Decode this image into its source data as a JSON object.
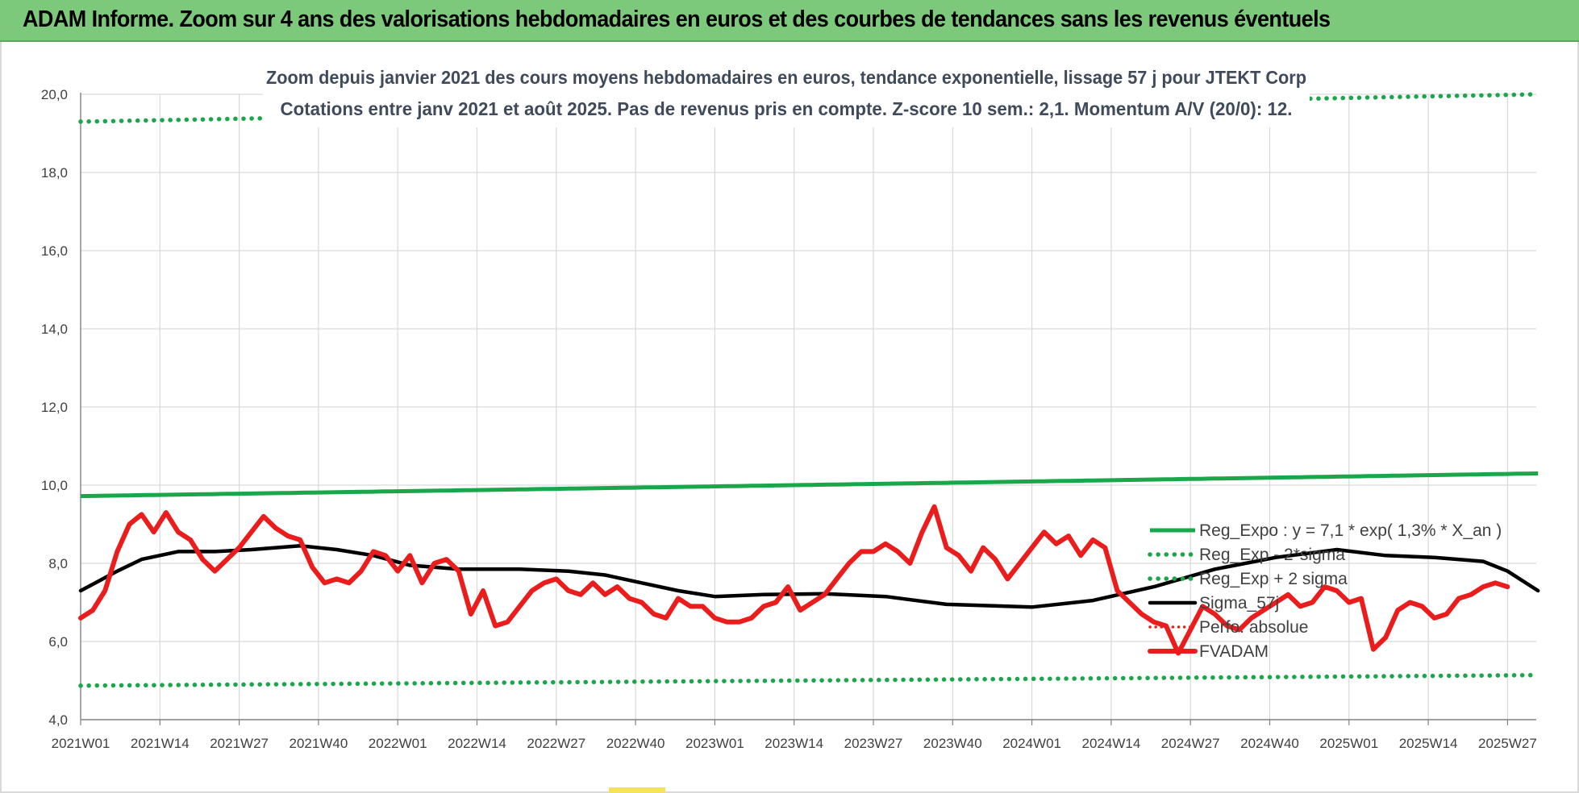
{
  "header": {
    "title": "ADAM Informe. Zoom sur 4 ans des valorisations hebdomadaires en euros et des courbes de tendances sans les revenus éventuels"
  },
  "chart_data": {
    "type": "line",
    "subtitle_lines": [
      "Zoom depuis janvier 2021 des cours moyens hebdomadaires en euros, tendance exponentielle, lissage 57 j pour JTEKT Corp",
      "Cotations entre janv 2021 et août 2025. Pas de revenus pris en compte. Z-score 10 sem.: 2,1. Momentum A/V (20/0): 12."
    ],
    "ylim": [
      4,
      20
    ],
    "y_ticks": [
      "4,0",
      "6,0",
      "8,0",
      "10,0",
      "12,0",
      "14,0",
      "16,0",
      "18,0",
      "20,0"
    ],
    "x_tick_labels": [
      "2021W01",
      "2021W14",
      "2021W27",
      "2021W40",
      "2022W01",
      "2022W14",
      "2022W27",
      "2022W40",
      "2023W01",
      "2023W14",
      "2023W27",
      "2023W40",
      "2024W01",
      "2024W14",
      "2024W27",
      "2024W40",
      "2025W01",
      "2025W14",
      "2025W27"
    ],
    "n_weeks": 240,
    "grid": "vertical and horizontal",
    "legend_position": "right",
    "colors": {
      "reg_expo": "#1aa64a",
      "reg_band": "#1aa64a",
      "sigma": "#000000",
      "perfo": "#e8201e",
      "fvadam": "#ea1c1c"
    },
    "series": [
      {
        "name": "Reg_Expo : y = 7,1 * exp( 1,3% *  X_an )",
        "style": "solid-green",
        "points": [
          [
            0,
            9.72
          ],
          [
            239,
            10.3
          ]
        ]
      },
      {
        "name": "Reg_Exp - 2*sigma",
        "style": "dotted-green",
        "points": [
          [
            0,
            4.87
          ],
          [
            239,
            5.14
          ]
        ]
      },
      {
        "name": "Reg_Exp + 2 sigma",
        "style": "dotted-green",
        "points": [
          [
            0,
            19.3
          ],
          [
            239,
            20.0
          ]
        ]
      },
      {
        "name": "Sigma_57j",
        "style": "solid-black",
        "points": [
          [
            0,
            7.3
          ],
          [
            6,
            7.8
          ],
          [
            10,
            8.1
          ],
          [
            16,
            8.3
          ],
          [
            22,
            8.3
          ],
          [
            28,
            8.35
          ],
          [
            36,
            8.45
          ],
          [
            42,
            8.35
          ],
          [
            48,
            8.2
          ],
          [
            54,
            7.95
          ],
          [
            62,
            7.85
          ],
          [
            72,
            7.85
          ],
          [
            80,
            7.8
          ],
          [
            86,
            7.7
          ],
          [
            92,
            7.5
          ],
          [
            98,
            7.3
          ],
          [
            104,
            7.15
          ],
          [
            112,
            7.2
          ],
          [
            122,
            7.22
          ],
          [
            132,
            7.15
          ],
          [
            142,
            6.95
          ],
          [
            156,
            6.88
          ],
          [
            166,
            7.05
          ],
          [
            176,
            7.4
          ],
          [
            186,
            7.85
          ],
          [
            196,
            8.15
          ],
          [
            206,
            8.35
          ],
          [
            214,
            8.2
          ],
          [
            222,
            8.15
          ],
          [
            230,
            8.05
          ],
          [
            234,
            7.8
          ],
          [
            238,
            7.4
          ],
          [
            239,
            7.3
          ]
        ]
      },
      {
        "name": "Perfo. absolue",
        "style": "dotted-red",
        "points": []
      },
      {
        "name": "FVADAM",
        "style": "solid-red",
        "points": [
          [
            0,
            6.6
          ],
          [
            2,
            6.8
          ],
          [
            4,
            7.3
          ],
          [
            6,
            8.3
          ],
          [
            8,
            9.0
          ],
          [
            10,
            9.25
          ],
          [
            12,
            8.8
          ],
          [
            14,
            9.3
          ],
          [
            16,
            8.8
          ],
          [
            18,
            8.6
          ],
          [
            20,
            8.1
          ],
          [
            22,
            7.8
          ],
          [
            24,
            8.1
          ],
          [
            26,
            8.4
          ],
          [
            28,
            8.8
          ],
          [
            30,
            9.2
          ],
          [
            32,
            8.9
          ],
          [
            34,
            8.7
          ],
          [
            36,
            8.6
          ],
          [
            38,
            7.9
          ],
          [
            40,
            7.5
          ],
          [
            42,
            7.6
          ],
          [
            44,
            7.5
          ],
          [
            46,
            7.8
          ],
          [
            48,
            8.3
          ],
          [
            50,
            8.2
          ],
          [
            52,
            7.8
          ],
          [
            54,
            8.2
          ],
          [
            56,
            7.5
          ],
          [
            58,
            8.0
          ],
          [
            60,
            8.1
          ],
          [
            62,
            7.8
          ],
          [
            64,
            6.7
          ],
          [
            66,
            7.3
          ],
          [
            68,
            6.4
          ],
          [
            70,
            6.5
          ],
          [
            72,
            6.9
          ],
          [
            74,
            7.3
          ],
          [
            76,
            7.5
          ],
          [
            78,
            7.6
          ],
          [
            80,
            7.3
          ],
          [
            82,
            7.2
          ],
          [
            84,
            7.5
          ],
          [
            86,
            7.2
          ],
          [
            88,
            7.4
          ],
          [
            90,
            7.1
          ],
          [
            92,
            7.0
          ],
          [
            94,
            6.7
          ],
          [
            96,
            6.6
          ],
          [
            98,
            7.1
          ],
          [
            100,
            6.9
          ],
          [
            102,
            6.9
          ],
          [
            104,
            6.6
          ],
          [
            106,
            6.5
          ],
          [
            108,
            6.5
          ],
          [
            110,
            6.6
          ],
          [
            112,
            6.9
          ],
          [
            114,
            7.0
          ],
          [
            116,
            7.4
          ],
          [
            118,
            6.8
          ],
          [
            120,
            7.0
          ],
          [
            122,
            7.2
          ],
          [
            124,
            7.6
          ],
          [
            126,
            8.0
          ],
          [
            128,
            8.3
          ],
          [
            130,
            8.3
          ],
          [
            132,
            8.5
          ],
          [
            134,
            8.3
          ],
          [
            136,
            8.0
          ],
          [
            138,
            8.8
          ],
          [
            140,
            9.45
          ],
          [
            142,
            8.4
          ],
          [
            144,
            8.2
          ],
          [
            146,
            7.8
          ],
          [
            148,
            8.4
          ],
          [
            150,
            8.1
          ],
          [
            152,
            7.6
          ],
          [
            154,
            8.0
          ],
          [
            156,
            8.4
          ],
          [
            158,
            8.8
          ],
          [
            160,
            8.5
          ],
          [
            162,
            8.7
          ],
          [
            164,
            8.2
          ],
          [
            166,
            8.6
          ],
          [
            168,
            8.4
          ],
          [
            170,
            7.3
          ],
          [
            172,
            7.0
          ],
          [
            174,
            6.7
          ],
          [
            176,
            6.5
          ],
          [
            178,
            6.4
          ],
          [
            180,
            5.7
          ],
          [
            182,
            6.3
          ],
          [
            184,
            6.9
          ],
          [
            186,
            6.7
          ],
          [
            188,
            6.4
          ],
          [
            190,
            6.3
          ],
          [
            192,
            6.6
          ],
          [
            194,
            6.8
          ],
          [
            196,
            7.0
          ],
          [
            198,
            7.2
          ],
          [
            200,
            6.9
          ],
          [
            202,
            7.0
          ],
          [
            204,
            7.4
          ],
          [
            206,
            7.3
          ],
          [
            208,
            7.0
          ],
          [
            210,
            7.1
          ],
          [
            212,
            5.8
          ],
          [
            214,
            6.1
          ],
          [
            216,
            6.8
          ],
          [
            218,
            7.0
          ],
          [
            220,
            6.9
          ],
          [
            222,
            6.6
          ],
          [
            224,
            6.7
          ],
          [
            226,
            7.1
          ],
          [
            228,
            7.2
          ],
          [
            230,
            7.4
          ],
          [
            232,
            7.5
          ],
          [
            234,
            7.4
          ]
        ]
      }
    ]
  }
}
